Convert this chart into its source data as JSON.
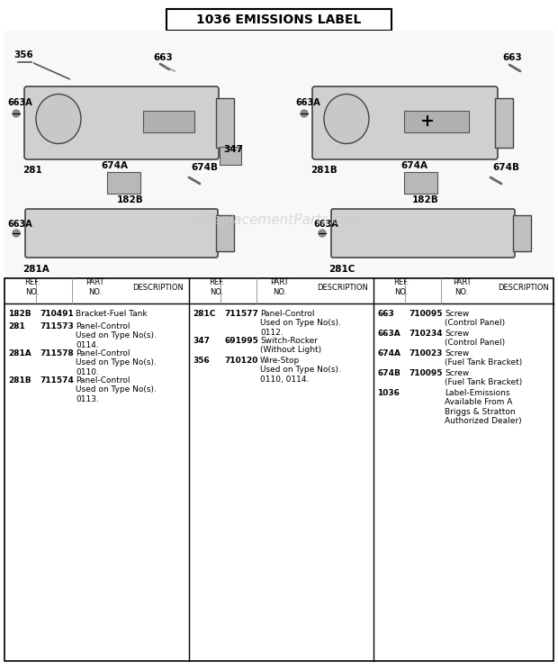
{
  "title": "1036 EMISSIONS LABEL",
  "bg_color": "#ffffff",
  "watermark": "eReplacementParts.com",
  "diagram_image_placeholder": true,
  "table": {
    "col1": {
      "header": [
        "REF.\nNO.",
        "PART\nNO.",
        "DESCRIPTION"
      ],
      "rows": [
        [
          "182B",
          "710491",
          "Bracket-Fuel Tank"
        ],
        [
          "281",
          "711573",
          "Panel-Control\nUsed on Type No(s).\n0114."
        ],
        [
          "281A",
          "711578",
          "Panel-Control\nUsed on Type No(s).\n0110."
        ],
        [
          "281B",
          "711574",
          "Panel-Control\nUsed on Type No(s).\n0113."
        ]
      ]
    },
    "col2": {
      "header": [
        "REF.\nNO.",
        "PART\nNO.",
        "DESCRIPTION"
      ],
      "rows": [
        [
          "281C",
          "711577",
          "Panel-Control\nUsed on Type No(s).\n0112."
        ],
        [
          "347",
          "691995",
          "Switch-Rocker\n(Without Light)"
        ],
        [
          "356",
          "710120",
          "Wire-Stop\nUsed on Type No(s).\n0110, 0114."
        ]
      ]
    },
    "col3": {
      "header": [
        "REF.\nNO.",
        "PART\nNO.",
        "DESCRIPTION"
      ],
      "rows": [
        [
          "663",
          "710095",
          "Screw\n(Control Panel)"
        ],
        [
          "663A",
          "710234",
          "Screw\n(Control Panel)"
        ],
        [
          "674A",
          "710023",
          "Screw\n(Fuel Tank Bracket)"
        ],
        [
          "674B",
          "710095",
          "Screw\n(Fuel Tank Bracket)"
        ],
        [
          "1036",
          "",
          "Label-Emissions\nAvailable From A\nBriggs & Stratton\nAuthorized Dealer)"
        ]
      ]
    }
  }
}
